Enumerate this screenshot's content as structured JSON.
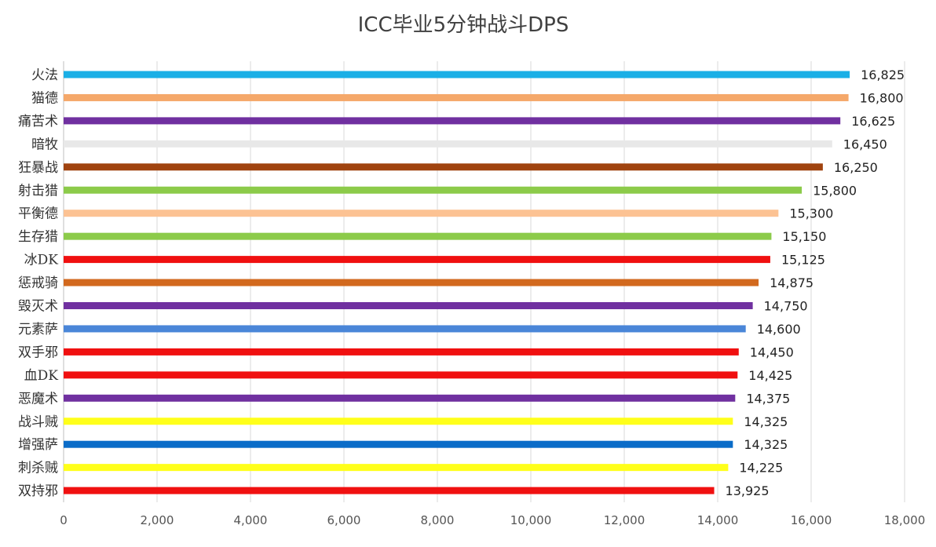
{
  "chart_data": {
    "type": "bar",
    "orientation": "horizontal",
    "title": "ICC毕业5分钟战斗DPS",
    "xlabel": "",
    "ylabel": "",
    "xlim": [
      0,
      18000
    ],
    "x_ticks": [
      "0",
      "2,000",
      "4,000",
      "6,000",
      "8,000",
      "10,000",
      "12,000",
      "14,000",
      "16,000",
      "18,000"
    ],
    "grid": "vertical",
    "legend": "none",
    "categories": [
      "火法",
      "猫德",
      "痛苦术",
      "暗牧",
      "狂暴战",
      "射击猎",
      "平衡德",
      "生存猎",
      "冰DK",
      "惩戒骑",
      "毁灭术",
      "元素萨",
      "双手邪",
      "血DK",
      "恶魔术",
      "战斗贼",
      "增强萨",
      "刺杀贼",
      "双持邪"
    ],
    "values": [
      16825,
      16800,
      16625,
      16450,
      16250,
      15800,
      15300,
      15150,
      15125,
      14875,
      14750,
      14600,
      14450,
      14425,
      14375,
      14325,
      14325,
      14225,
      13925
    ],
    "data_labels": [
      "16,825",
      "16,800",
      "16,625",
      "16,450",
      "16,250",
      "15,800",
      "15,300",
      "15,150",
      "15,125",
      "14,875",
      "14,750",
      "14,600",
      "14,450",
      "14,425",
      "14,375",
      "14,325",
      "14,325",
      "14,225",
      "13,925"
    ],
    "colors": [
      "#1AAFE6",
      "#F5A86A",
      "#7030A0",
      "#E8E8E8",
      "#A0430F",
      "#8CCB4A",
      "#FCC293",
      "#8CCB4A",
      "#F01010",
      "#D2691E",
      "#7030A0",
      "#4A86D8",
      "#F01010",
      "#F01010",
      "#7030A0",
      "#FFFF1A",
      "#0A6CC8",
      "#FFFF1A",
      "#F01010"
    ]
  }
}
